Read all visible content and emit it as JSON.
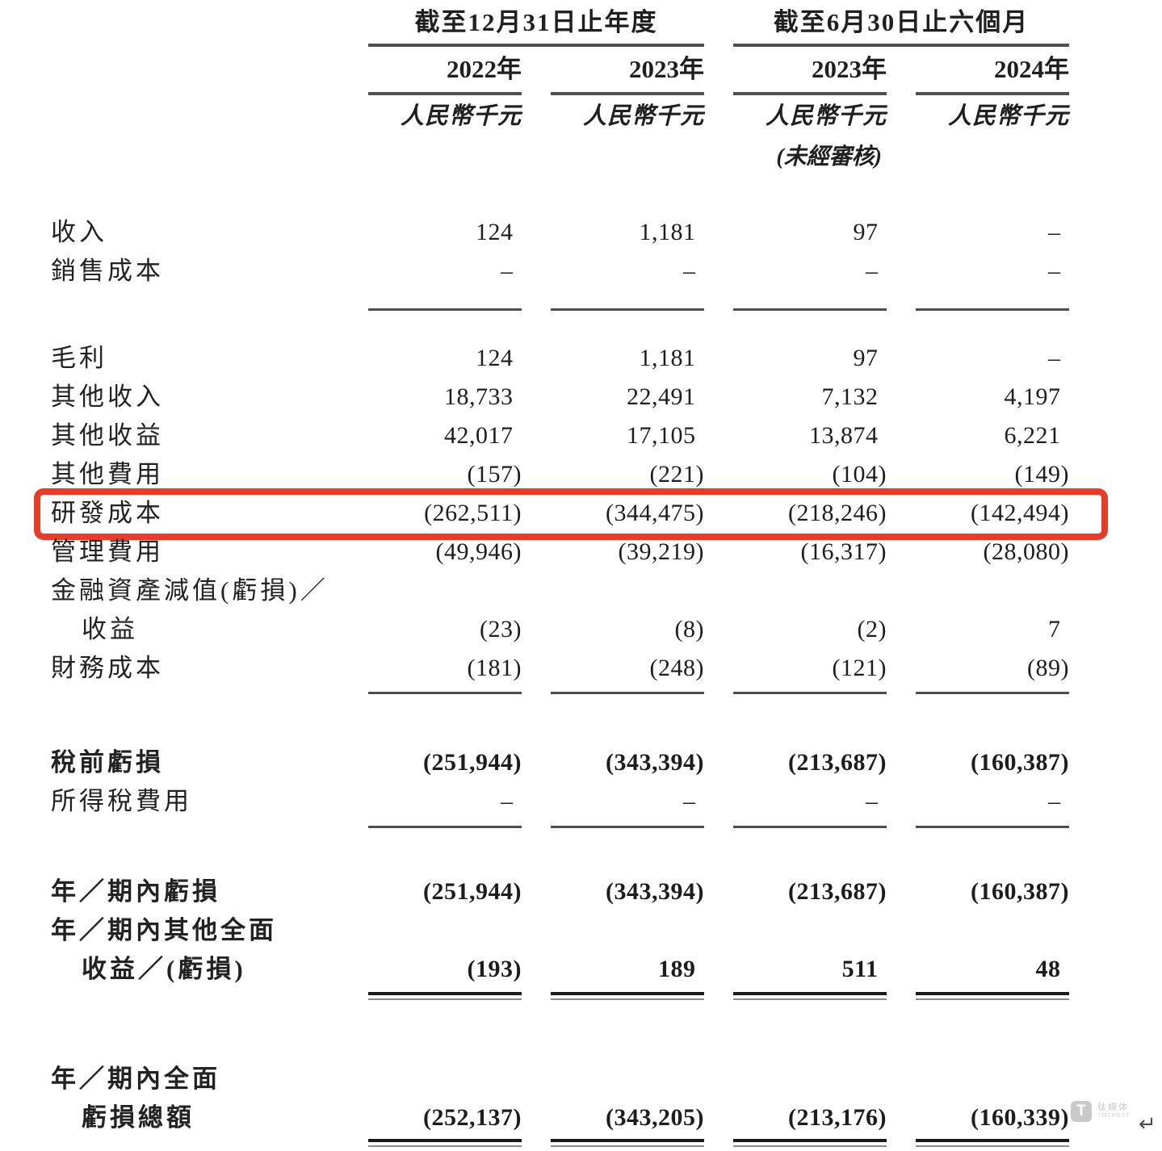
{
  "columns": {
    "group1": {
      "title": "截至12月31日止年度",
      "years": [
        "2022年",
        "2023年"
      ]
    },
    "group2": {
      "title": "截至6月30日止六個月",
      "years": [
        "2023年",
        "2024年"
      ]
    },
    "unit_label": "人民幣千元",
    "unaudited_note": "(未經審核)"
  },
  "rows": [
    {
      "label": "收入",
      "values": [
        "124",
        "1,181",
        "97",
        "–"
      ]
    },
    {
      "label": "銷售成本",
      "values": [
        "–",
        "–",
        "–",
        "–"
      ]
    },
    {
      "label": "毛利",
      "values": [
        "124",
        "1,181",
        "97",
        "–"
      ]
    },
    {
      "label": "其他收入",
      "values": [
        "18,733",
        "22,491",
        "7,132",
        "4,197"
      ]
    },
    {
      "label": "其他收益",
      "values": [
        "42,017",
        "17,105",
        "13,874",
        "6,221"
      ]
    },
    {
      "label": "其他費用",
      "values": [
        "(157)",
        "(221)",
        "(104)",
        "(149)"
      ]
    },
    {
      "label": "研發成本",
      "values": [
        "(262,511)",
        "(344,475)",
        "(218,246)",
        "(142,494)"
      ]
    },
    {
      "label": "管理費用",
      "values": [
        "(49,946)",
        "(39,219)",
        "(16,317)",
        "(28,080)"
      ]
    },
    {
      "label": "金融資產減值(虧損)／"
    },
    {
      "label": "收益",
      "values": [
        "(23)",
        "(8)",
        "(2)",
        "7"
      ]
    },
    {
      "label": "財務成本",
      "values": [
        "(181)",
        "(248)",
        "(121)",
        "(89)"
      ]
    },
    {
      "label": "稅前虧損",
      "values": [
        "(251,944)",
        "(343,394)",
        "(213,687)",
        "(160,387)"
      ]
    },
    {
      "label": "所得稅費用",
      "values": [
        "–",
        "–",
        "–",
        "–"
      ]
    },
    {
      "label": "年／期內虧損",
      "values": [
        "(251,944)",
        "(343,394)",
        "(213,687)",
        "(160,387)"
      ]
    },
    {
      "label": "年／期內其他全面"
    },
    {
      "label": "收益／(虧損)",
      "values": [
        "(193)",
        "189",
        "511",
        "48"
      ]
    },
    {
      "label": "年／期內全面"
    },
    {
      "label": "虧損總額",
      "values": [
        "(252,137)",
        "(343,205)",
        "(213,176)",
        "(160,339)"
      ]
    }
  ],
  "watermark": {
    "logo_letter": "T",
    "brand": "钛媒体",
    "brand_sub": "TMTPOST",
    "return_symbol": "↵"
  },
  "colors": {
    "highlight": "#e63c2a"
  }
}
